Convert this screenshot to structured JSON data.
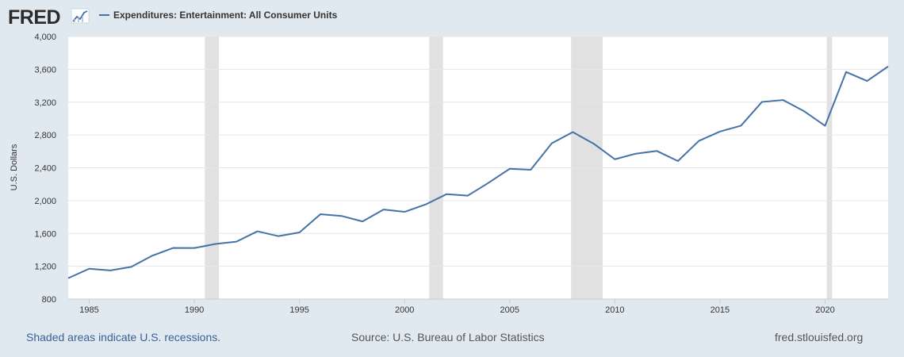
{
  "header": {
    "logo_text": "FRED",
    "logo_icon": "line-chart-icon"
  },
  "colors": {
    "background": "#e1e9f0",
    "plot_background": "#ffffff",
    "series": "#4572a7",
    "recession": "#e1e1e1",
    "gridline": "#e6e6e6",
    "link": "#3a5f98"
  },
  "chart_data": {
    "type": "line",
    "legend": {
      "position": "top-left"
    },
    "series": [
      {
        "name": "Expenditures: Entertainment: All Consumer Units",
        "x": [
          1984,
          1985,
          1986,
          1987,
          1988,
          1989,
          1990,
          1991,
          1992,
          1993,
          1994,
          1995,
          1996,
          1997,
          1998,
          1999,
          2000,
          2001,
          2002,
          2003,
          2004,
          2005,
          2006,
          2007,
          2008,
          2009,
          2010,
          2011,
          2012,
          2013,
          2014,
          2015,
          2016,
          2017,
          2018,
          2019,
          2020,
          2021,
          2022,
          2023
        ],
        "values": [
          1055,
          1170,
          1149,
          1193,
          1329,
          1424,
          1422,
          1472,
          1500,
          1626,
          1567,
          1612,
          1834,
          1813,
          1746,
          1891,
          1863,
          1953,
          2079,
          2060,
          2218,
          2388,
          2376,
          2698,
          2835,
          2693,
          2504,
          2572,
          2605,
          2482,
          2728,
          2842,
          2913,
          3203,
          3226,
          3090,
          2912,
          3568,
          3458,
          3635
        ]
      }
    ],
    "x_ticks": [
      "1985",
      "1990",
      "1995",
      "2000",
      "2005",
      "2010",
      "2015",
      "2020"
    ],
    "y_ticks": [
      "800",
      "1,200",
      "1,600",
      "2,000",
      "2,400",
      "2,800",
      "3,200",
      "3,600",
      "4,000"
    ],
    "xlim": [
      1984,
      2023
    ],
    "ylim": [
      800,
      4000
    ],
    "ylabel": "U.S. Dollars",
    "grid": "horizontal",
    "recessions": [
      [
        1990.5,
        1991.17
      ],
      [
        2001.17,
        2001.83
      ],
      [
        2007.92,
        2009.42
      ],
      [
        2020.08,
        2020.33
      ]
    ]
  },
  "footer": {
    "recession_note": "Shaded areas indicate U.S. recessions.",
    "source": "Source: U.S. Bureau of Labor Statistics",
    "site": "fred.stlouisfed.org"
  }
}
